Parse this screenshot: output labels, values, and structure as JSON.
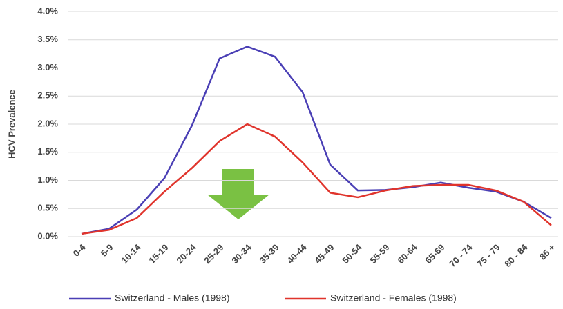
{
  "chart_data": {
    "type": "line",
    "ylabel": "HCV Prevalence",
    "categories": [
      "0-4",
      "5-9",
      "10-14",
      "15-19",
      "20-24",
      "25-29",
      "30-34",
      "35-39",
      "40-44",
      "45-49",
      "50-54",
      "55-59",
      "60-64",
      "65-69",
      "70 - 74",
      "75 - 79",
      "80 - 84",
      "85 +"
    ],
    "series": [
      {
        "name": "Switzerland - Males (1998)",
        "color": "#4a3fb5",
        "values": [
          0.05,
          0.14,
          0.48,
          1.04,
          1.98,
          3.17,
          3.38,
          3.2,
          2.57,
          1.28,
          0.82,
          0.83,
          0.88,
          0.96,
          0.87,
          0.8,
          0.62,
          0.33
        ]
      },
      {
        "name": "Switzerland - Females (1998)",
        "color": "#e0342c",
        "values": [
          0.05,
          0.12,
          0.33,
          0.8,
          1.22,
          1.7,
          2.0,
          1.78,
          1.32,
          0.78,
          0.7,
          0.82,
          0.9,
          0.92,
          0.92,
          0.82,
          0.62,
          0.2
        ]
      }
    ],
    "ylim": [
      0,
      4
    ],
    "yticks": [
      {
        "value": 0,
        "label": "0.0%"
      },
      {
        "value": 0.5,
        "label": "0.5%"
      },
      {
        "value": 1,
        "label": "1.0%"
      },
      {
        "value": 1.5,
        "label": "1.5%"
      },
      {
        "value": 2,
        "label": "2.0%"
      },
      {
        "value": 2.5,
        "label": "2.5%"
      },
      {
        "value": 3,
        "label": "3.0%"
      },
      {
        "value": 3.5,
        "label": "3.5%"
      },
      {
        "value": 4,
        "label": "4.0%"
      }
    ],
    "grid": true
  }
}
